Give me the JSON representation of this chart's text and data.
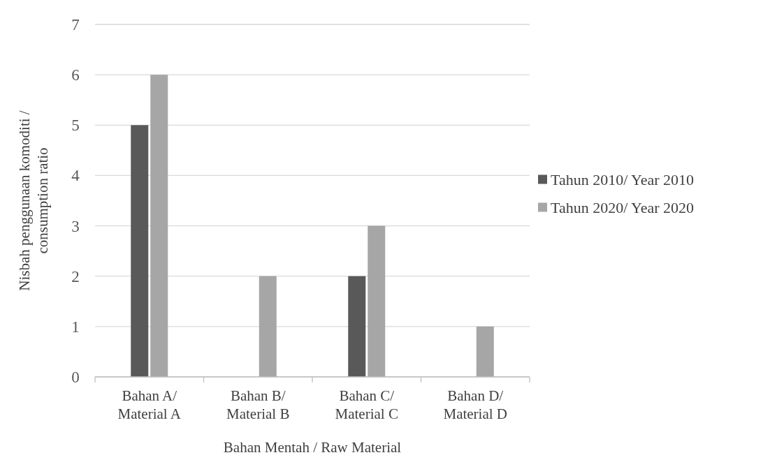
{
  "chart_data": {
    "type": "bar",
    "xlabel": "Bahan Mentah / Raw Material",
    "ylabel": "Nisbah penggunaan komoditi /\nconsumption ratio",
    "categories": [
      "Bahan A/\nMaterial A",
      "Bahan B/\nMaterial B",
      "Bahan C/\nMaterial C",
      "Bahan D/\nMaterial D"
    ],
    "series": [
      {
        "name": "Tahun 2010/ Year 2010",
        "color": "#595959",
        "values": [
          5,
          null,
          2,
          null
        ]
      },
      {
        "name": "Tahun 2020/ Year 2020",
        "color": "#a6a6a6",
        "values": [
          6,
          2,
          3,
          1
        ]
      }
    ],
    "ylim": [
      0,
      7
    ],
    "yticks": [
      0,
      1,
      2,
      3,
      4,
      5,
      6,
      7
    ],
    "grid": "y",
    "legend": "right"
  }
}
